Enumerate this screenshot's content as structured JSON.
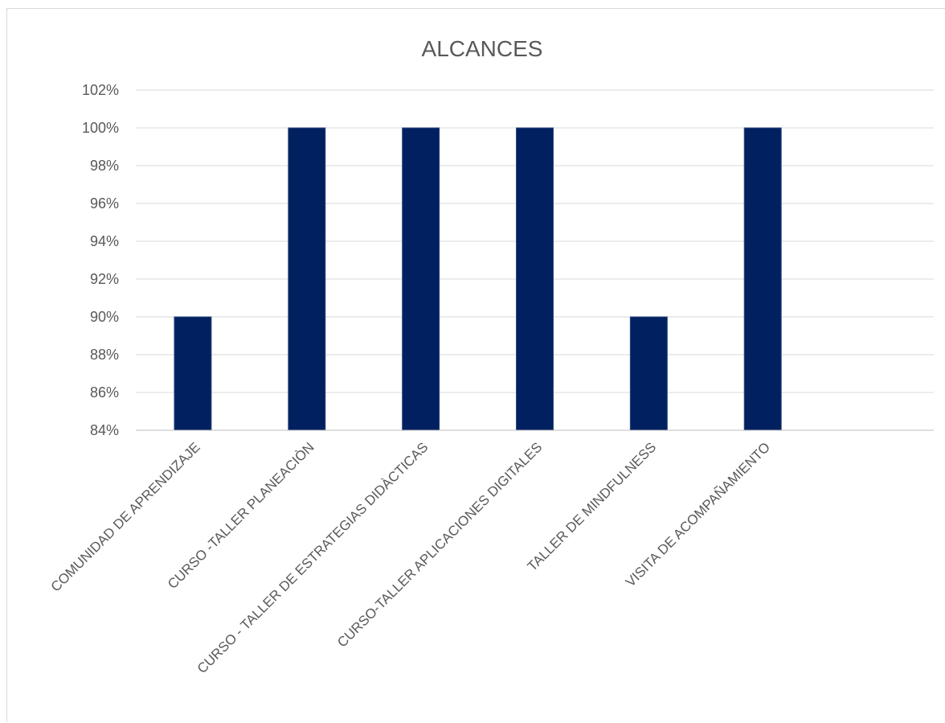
{
  "chart_data": {
    "type": "bar",
    "title": "ALCANCES",
    "categories": [
      "COMUNIDAD DE APRENDIZAJE",
      "CURSO -TALLER  PLANEACIÒN",
      "CURSO - TALLER DE ESTRATEGIAS DIDÀCTICAS",
      "CURSO-TALLER APLICACIONES DIGITALES",
      "TALLER DE MINDFULNESS",
      "VISITA DE ACOMPAÑAMIENTO"
    ],
    "series": [
      {
        "values": [
          0.9,
          1.0,
          1.0,
          1.0,
          0.9,
          1.0
        ]
      }
    ],
    "ylim": [
      0.84,
      1.02
    ],
    "y_ticks": [
      0.84,
      0.86,
      0.88,
      0.9,
      0.92,
      0.94,
      0.96,
      0.98,
      1.0,
      1.02
    ],
    "y_tick_labels": [
      "84%",
      "86%",
      "88%",
      "90%",
      "92%",
      "94%",
      "96%",
      "98%",
      "100%",
      "102%"
    ],
    "xlabel": "",
    "ylabel": "",
    "grid": true,
    "legend": "none",
    "colors": {
      "bar": "#002060",
      "grid": "#d9d9d9",
      "text": "#595959"
    }
  }
}
